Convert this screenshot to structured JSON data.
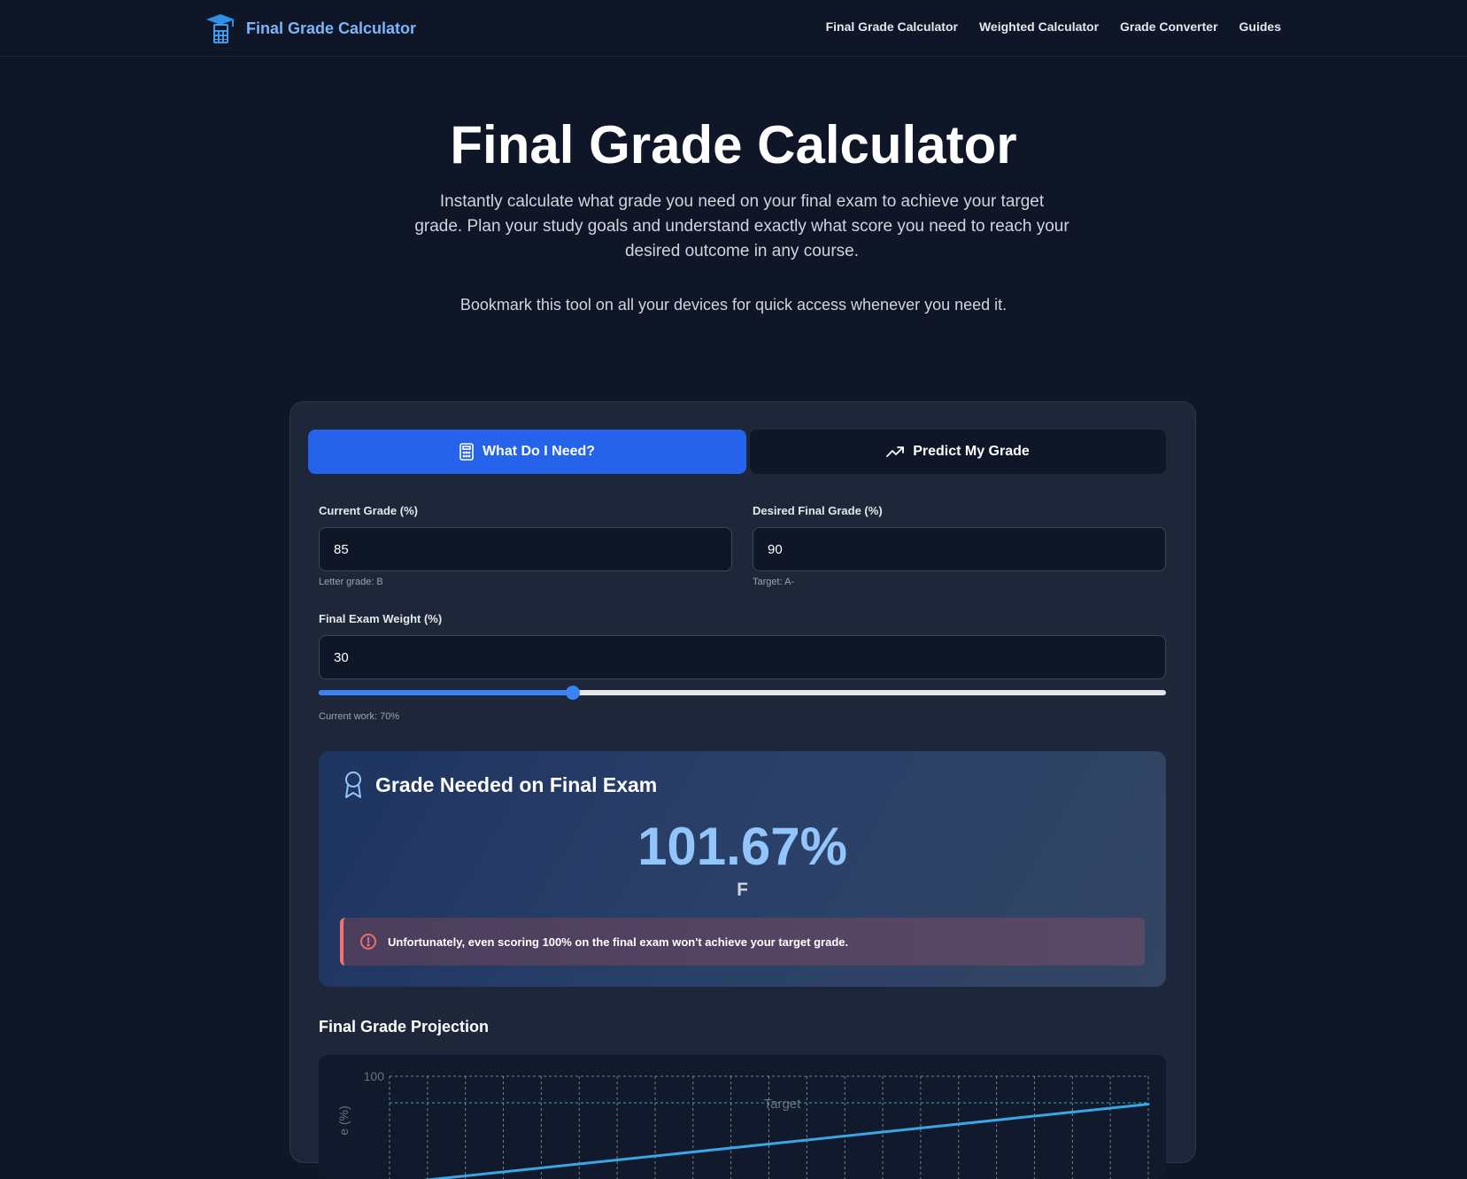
{
  "header": {
    "brand": "Final Grade Calculator",
    "nav": [
      "Final Grade Calculator",
      "Weighted Calculator",
      "Grade Converter",
      "Guides"
    ],
    "accent": "#7db5f7"
  },
  "hero": {
    "title": "Final Grade Calculator",
    "subtitle": "Instantly calculate what grade you need on your final exam to achieve your target grade. Plan your study goals and understand exactly what score you need to reach your desired outcome in any course.",
    "note": "Bookmark this tool on all your devices for quick access whenever you need it."
  },
  "tabs": [
    {
      "label": "What Do I Need?",
      "icon": "calculator-icon",
      "active": true
    },
    {
      "label": "Predict My Grade",
      "icon": "trending-up-icon",
      "active": false
    }
  ],
  "form": {
    "current_grade": {
      "label": "Current Grade (%)",
      "value": "85",
      "hint": "Letter grade: B"
    },
    "desired_grade": {
      "label": "Desired Final Grade (%)",
      "value": "90",
      "hint": "Target: A-"
    },
    "final_weight": {
      "label": "Final Exam Weight (%)",
      "value": "30",
      "hint": "Current work: 70%",
      "slider_percent": 30
    }
  },
  "result": {
    "title": "Grade Needed on Final Exam",
    "icon": "award-icon",
    "value": "101.67%",
    "letter": "F",
    "alert": "Unfortunately, even scoring 100% on the final exam won't achieve your target grade.",
    "alert_color": "#f87171"
  },
  "projection": {
    "title": "Final Grade Projection"
  },
  "chart_data": {
    "type": "line",
    "ylabel": "e (%)",
    "y_tick_labels": [
      "100"
    ],
    "target_label": "Target",
    "target": 90,
    "ylim": [
      0,
      100
    ],
    "series": [
      {
        "x": [
          0,
          100
        ],
        "values": [
          59.5,
          89.5
        ]
      }
    ],
    "grid": true
  }
}
